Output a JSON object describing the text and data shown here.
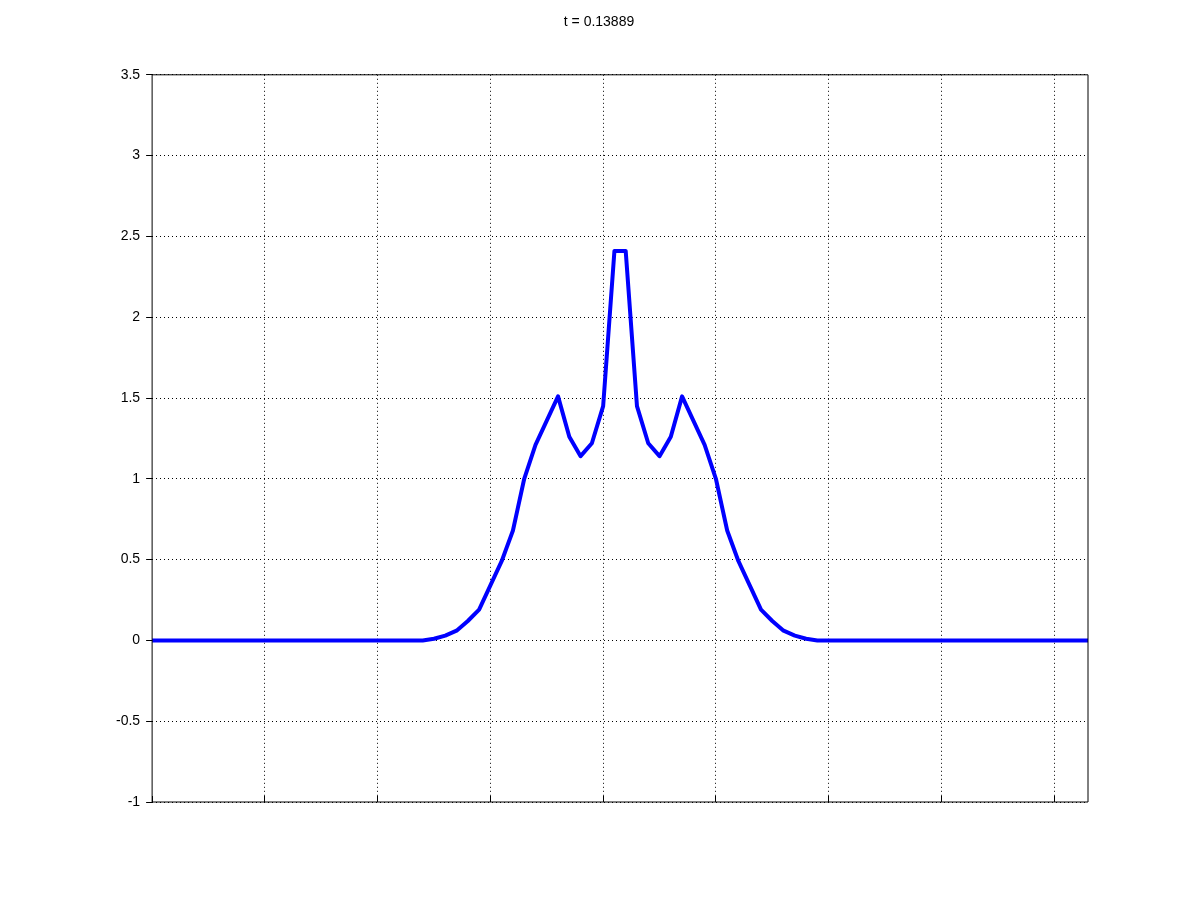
{
  "chart_data": {
    "type": "line",
    "title": "t = 0.13889",
    "categories": [
      null,
      null,
      null,
      null,
      null,
      null,
      null,
      null,
      null,
      null,
      null,
      null,
      null,
      null,
      null,
      null,
      null,
      null,
      null,
      null,
      null,
      null,
      null,
      null,
      null,
      null,
      null,
      null,
      null,
      null,
      null,
      null,
      null,
      null,
      null,
      null,
      null,
      null,
      null,
      null,
      null,
      null,
      null,
      null,
      null,
      null,
      null,
      null,
      null,
      null,
      null,
      null,
      null,
      null,
      null,
      null,
      null,
      null,
      null,
      null,
      null,
      null,
      null,
      null,
      null,
      null,
      null,
      null,
      null,
      null,
      null,
      null,
      null,
      null,
      null,
      null,
      null,
      null,
      null,
      null,
      null,
      null,
      null,
      null
    ],
    "series": [
      {
        "color": "#0000ff",
        "values": [
          0,
          0,
          0,
          0,
          0,
          0,
          0,
          0,
          0,
          0,
          0,
          0,
          0,
          0,
          0,
          0,
          0,
          0,
          0,
          0,
          0,
          0,
          0,
          0,
          0,
          0.01,
          0.03,
          0.06,
          0.12,
          0.19,
          0.34,
          0.49,
          0.68,
          1.0,
          1.21,
          1.36,
          1.51,
          1.26,
          1.14,
          1.22,
          1.45,
          2.41,
          2.41,
          1.45,
          1.22,
          1.14,
          1.26,
          1.51,
          1.36,
          1.21,
          1.0,
          0.68,
          0.49,
          0.34,
          0.19,
          0.12,
          0.06,
          0.03,
          0.01,
          0,
          0,
          0,
          0,
          0,
          0,
          0,
          0,
          0,
          0,
          0,
          0,
          0,
          0,
          0,
          0,
          0,
          0,
          0,
          0,
          0,
          0,
          0,
          0,
          0
        ]
      }
    ],
    "ylim": [
      -1,
      3.5
    ],
    "yticks": [
      -1,
      -0.5,
      0,
      0.5,
      1,
      1.5,
      2,
      2.5,
      3,
      3.5
    ],
    "tick_labels": "y",
    "grid": true,
    "legend": false,
    "marker": "none",
    "line_style": "solid"
  }
}
